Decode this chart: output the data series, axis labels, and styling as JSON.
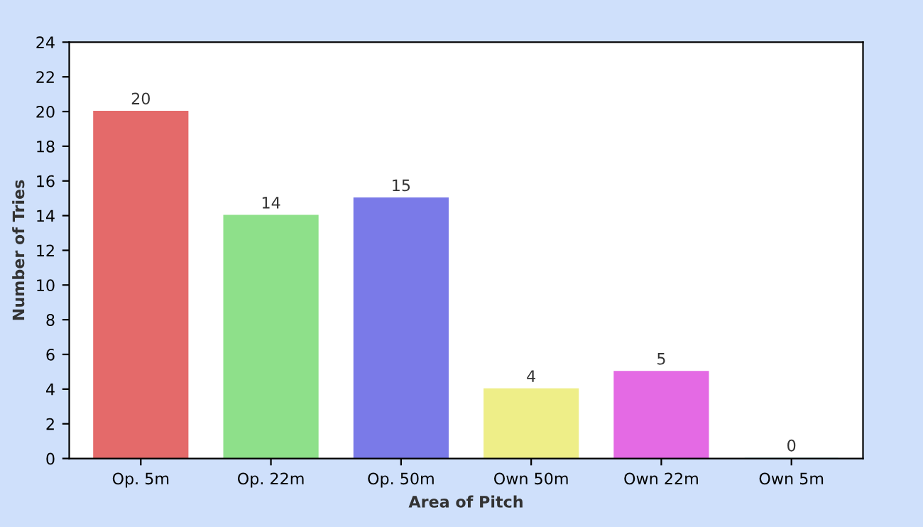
{
  "chart_data": {
    "type": "bar",
    "xlabel": "Area of Pitch",
    "ylabel": "Number of Tries",
    "categories": [
      "Op. 5m",
      "Op. 22m",
      "Op. 50m",
      "Own 50m",
      "Own 22m",
      "Own 5m"
    ],
    "values": [
      20,
      14,
      15,
      4,
      5,
      0
    ],
    "colors": [
      "#e46a6a",
      "#8ee08a",
      "#7a7ae8",
      "#eeee88",
      "#e46ae4",
      "#a8e4e4"
    ],
    "ylim": [
      0,
      24
    ],
    "yticks": [
      0,
      2,
      4,
      6,
      8,
      10,
      12,
      14,
      16,
      18,
      20,
      22,
      24
    ],
    "data_labels": true,
    "grid": false
  }
}
